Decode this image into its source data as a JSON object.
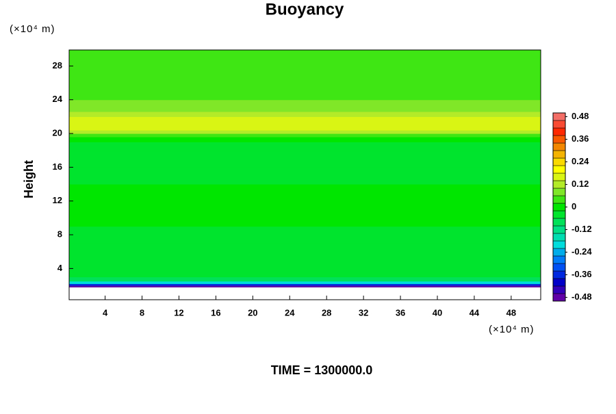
{
  "chart_data": {
    "type": "heatmap",
    "title": "Buoyancy",
    "ylabel": "Height",
    "x_unit": "(×10⁴ m)",
    "y_unit": "(×10⁴ m)",
    "footer": "TIME = 1300000.0",
    "xlim": [
      0.1,
      51.2
    ],
    "ylim": [
      0.3,
      29.9
    ],
    "xticks": [
      4,
      8,
      12,
      16,
      20,
      24,
      28,
      32,
      36,
      40,
      44,
      48
    ],
    "yticks": [
      4,
      8,
      12,
      16,
      20,
      24,
      28
    ],
    "y_edges": [
      1.8,
      2.0,
      2.2,
      2.5,
      3,
      5,
      7,
      9,
      10,
      12,
      14,
      16,
      18,
      19,
      19.6,
      20,
      20.4,
      21,
      21.6,
      22,
      22.6,
      23.2,
      24,
      26,
      28,
      29,
      29.9
    ],
    "values": [
      -0.48,
      -0.36,
      -0.2,
      -0.08,
      -0.04,
      -0.04,
      -0.03,
      -0.01,
      0.0,
      -0.01,
      -0.03,
      -0.03,
      -0.03,
      -0.01,
      0.05,
      0.12,
      0.16,
      0.18,
      0.16,
      0.12,
      0.08,
      0.06,
      0.05,
      0.05,
      0.04,
      0.03
    ],
    "colorbar": {
      "lim": [
        -0.5,
        0.5
      ],
      "step": 0.04,
      "ticks": [
        0.48,
        0.36,
        0.24,
        0.12,
        0,
        -0.12,
        -0.24,
        -0.36,
        -0.48
      ],
      "colormap": [
        "#7a00a0",
        "#0000c8",
        "#0064ff",
        "#00dcdc",
        "#00e070",
        "#00e600",
        "#a0e632",
        "#ffff00",
        "#f0a000",
        "#ff2800",
        "#f08080"
      ]
    }
  }
}
